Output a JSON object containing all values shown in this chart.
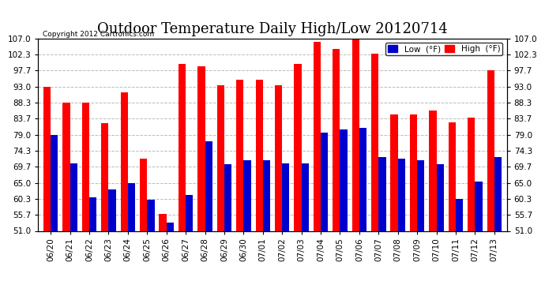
{
  "title": "Outdoor Temperature Daily High/Low 20120714",
  "copyright": "Copyright 2012 Cartronics.com",
  "legend_low": "Low  (°F)",
  "legend_high": "High  (°F)",
  "dates": [
    "06/20",
    "06/21",
    "06/22",
    "06/23",
    "06/24",
    "06/25",
    "06/26",
    "06/27",
    "06/28",
    "06/29",
    "06/30",
    "07/01",
    "07/02",
    "07/03",
    "07/04",
    "07/05",
    "07/06",
    "07/07",
    "07/08",
    "07/09",
    "07/10",
    "07/11",
    "07/12",
    "07/13"
  ],
  "highs": [
    93.0,
    88.3,
    88.3,
    82.4,
    91.4,
    72.0,
    56.0,
    99.5,
    99.0,
    93.5,
    95.0,
    95.0,
    93.5,
    99.5,
    106.0,
    104.0,
    107.0,
    102.5,
    85.0,
    84.9,
    86.0,
    82.5,
    84.0,
    97.7
  ],
  "lows": [
    79.0,
    70.7,
    60.8,
    63.1,
    65.0,
    60.0,
    53.5,
    61.5,
    77.0,
    70.3,
    71.5,
    71.5,
    70.7,
    70.7,
    79.5,
    80.5,
    81.0,
    72.5,
    72.0,
    71.5,
    70.5,
    60.3,
    65.3,
    72.5
  ],
  "ylim_min": 51.0,
  "ylim_max": 107.0,
  "yticks": [
    51.0,
    55.7,
    60.3,
    65.0,
    69.7,
    74.3,
    79.0,
    83.7,
    88.3,
    93.0,
    97.7,
    102.3,
    107.0
  ],
  "bar_color_high": "#ff0000",
  "bar_color_low": "#0000cc",
  "bg_color": "#ffffff",
  "grid_color": "#aaaaaa",
  "title_fontsize": 13,
  "tick_fontsize": 7.5,
  "bar_width": 0.38
}
